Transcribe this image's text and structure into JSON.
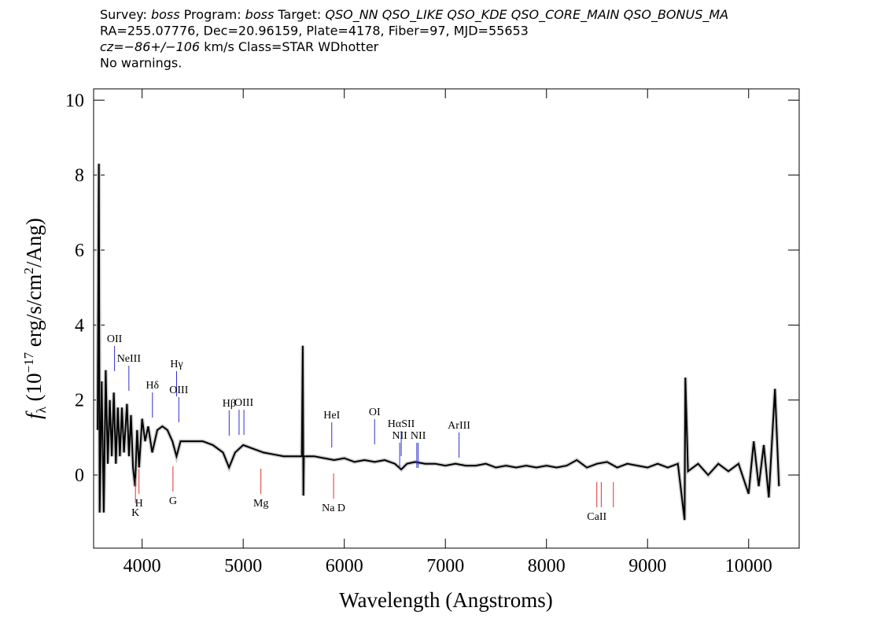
{
  "chart_data": {
    "type": "line",
    "header_lines": [
      [
        {
          "text": "Survey: "
        },
        {
          "text": "boss",
          "italic": true
        },
        {
          "text": " Program: "
        },
        {
          "text": "boss",
          "italic": true
        },
        {
          "text": " Target: "
        },
        {
          "text": "QSO_NN QSO_LIKE QSO_KDE QSO_CORE_MAIN QSO_BONUS_MA",
          "italic": true
        }
      ],
      [
        {
          "text": "RA=255.07776, Dec=20.96159, Plate=4178, Fiber=97, MJD=55653"
        }
      ],
      [
        {
          "text": "cz=−86+/−106",
          "italic": true
        },
        {
          "text": " km/s Class=STAR WDhotter"
        }
      ],
      [
        {
          "text": "No warnings."
        }
      ]
    ],
    "xlabel": "Wavelength (Angstroms)",
    "ylabel": [
      {
        "text": "f"
      },
      {
        "text": "λ",
        "sub": true
      },
      {
        "text": " (10"
      },
      {
        "text": "−17",
        "sup": true
      },
      {
        "text": " erg/s/cm"
      },
      {
        "text": "2",
        "sup": true
      },
      {
        "text": "/Ang)"
      }
    ],
    "color": "#000000",
    "x": [
      3560,
      3572,
      3580,
      3600,
      3620,
      3640,
      3660,
      3680,
      3700,
      3720,
      3740,
      3760,
      3780,
      3800,
      3820,
      3850,
      3870,
      3890,
      3910,
      3930,
      3950,
      3970,
      4000,
      4030,
      4060,
      4100,
      4150,
      4200,
      4250,
      4300,
      4340,
      4380,
      4420,
      4500,
      4600,
      4700,
      4800,
      4860,
      4920,
      5000,
      5100,
      5200,
      5300,
      5400,
      5500,
      5580,
      5589,
      5595,
      5600,
      5700,
      5800,
      5900,
      6000,
      6100,
      6200,
      6300,
      6400,
      6500,
      6563,
      6620,
      6700,
      6800,
      6900,
      7000,
      7100,
      7200,
      7300,
      7400,
      7500,
      7600,
      7700,
      7800,
      7900,
      8000,
      8100,
      8200,
      8300,
      8400,
      8500,
      8600,
      8700,
      8800,
      8900,
      9000,
      9100,
      9200,
      9300,
      9366,
      9374,
      9400,
      9500,
      9600,
      9700,
      9800,
      9900,
      10000,
      10050,
      10100,
      10150,
      10200,
      10260,
      10300
    ],
    "values": [
      1.2,
      8.3,
      -1.0,
      2.5,
      -1.0,
      2.8,
      0.3,
      2.0,
      0.5,
      2.2,
      0.3,
      1.8,
      0.5,
      1.8,
      0.6,
      1.9,
      0.5,
      1.6,
      0.2,
      -0.3,
      1.2,
      0.2,
      1.5,
      0.9,
      1.3,
      0.6,
      1.2,
      1.3,
      1.2,
      0.9,
      0.5,
      0.9,
      0.9,
      0.9,
      0.9,
      0.8,
      0.6,
      0.2,
      0.6,
      0.8,
      0.7,
      0.6,
      0.55,
      0.5,
      0.5,
      0.5,
      3.45,
      -0.55,
      0.5,
      0.5,
      0.45,
      0.4,
      0.45,
      0.35,
      0.4,
      0.35,
      0.4,
      0.3,
      0.15,
      0.3,
      0.35,
      0.3,
      0.3,
      0.25,
      0.3,
      0.25,
      0.25,
      0.3,
      0.2,
      0.25,
      0.2,
      0.25,
      0.2,
      0.25,
      0.2,
      0.25,
      0.4,
      0.2,
      0.3,
      0.35,
      0.2,
      0.3,
      0.25,
      0.2,
      0.3,
      0.2,
      0.3,
      -1.2,
      2.6,
      0.1,
      0.3,
      0.0,
      0.3,
      0.1,
      0.3,
      -0.5,
      0.9,
      -0.3,
      0.8,
      -0.6,
      2.3,
      -0.3
    ],
    "emission_lines": [
      {
        "wavelength": 3727,
        "label": "OII"
      },
      {
        "wavelength": 3869,
        "label": "NeIII"
      },
      {
        "wavelength": 4102,
        "label": "Hδ"
      },
      {
        "wavelength": 4341,
        "label": "Hγ"
      },
      {
        "wavelength": 4363,
        "label": "OIII"
      },
      {
        "wavelength": 4861,
        "label": "Hβ"
      },
      {
        "wavelength": 4959,
        "label": null
      },
      {
        "wavelength": 5007,
        "label": "OIII"
      },
      {
        "wavelength": 5876,
        "label": "HeI"
      },
      {
        "wavelength": 6300,
        "label": "OI"
      },
      {
        "wavelength": 6548,
        "label": "NII"
      },
      {
        "wavelength": 6563,
        "label": "HαSII"
      },
      {
        "wavelength": 6717,
        "label": null
      },
      {
        "wavelength": 6731,
        "label": "NII"
      },
      {
        "wavelength": 7135,
        "label": "ArIII"
      }
    ],
    "emission_color": "#3030d0",
    "absorption_lines": [
      {
        "wavelength": 3934,
        "label": "K"
      },
      {
        "wavelength": 3969,
        "label": "H"
      },
      {
        "wavelength": 4305,
        "label": "G"
      },
      {
        "wavelength": 5175,
        "label": "Mg"
      },
      {
        "wavelength": 5894,
        "label": "Na D"
      },
      {
        "wavelength": 8498,
        "label": "CaII"
      },
      {
        "wavelength": 8542,
        "label": null
      },
      {
        "wavelength": 8662,
        "label": null
      }
    ],
    "absorption_color": "#e03030",
    "xlim": [
      3520,
      10500
    ],
    "ylim": [
      -1.95,
      10.3
    ],
    "xticks": [
      4000,
      5000,
      6000,
      7000,
      8000,
      9000,
      10000
    ],
    "yticks": [
      0,
      2,
      4,
      6,
      8,
      10
    ]
  }
}
